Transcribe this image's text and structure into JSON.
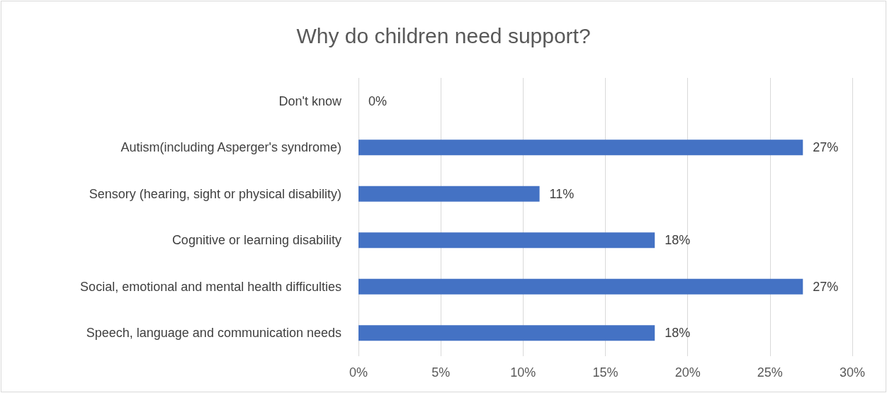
{
  "chart_data": {
    "type": "bar",
    "orientation": "horizontal",
    "title": "Why do children need support?",
    "categories": [
      "Don't know",
      "Autism(including Asperger's syndrome)",
      "Sensory (hearing, sight or physical disability)",
      "Cognitive or learning disability",
      "Social, emotional and mental health difficulties",
      "Speech, language and communication needs"
    ],
    "values": [
      0,
      27,
      11,
      18,
      27,
      18
    ],
    "value_labels": [
      "0%",
      "27%",
      "11%",
      "18%",
      "27%",
      "18%"
    ],
    "color": "#4472c4",
    "xlim": [
      0,
      30
    ],
    "xticks": [
      {
        "value": 0,
        "label": "0%"
      },
      {
        "value": 5,
        "label": "5%"
      },
      {
        "value": 10,
        "label": "10%"
      },
      {
        "value": 15,
        "label": "15%"
      },
      {
        "value": 20,
        "label": "20%"
      },
      {
        "value": 25,
        "label": "25%"
      },
      {
        "value": 30,
        "label": "30%"
      }
    ],
    "grid": "x"
  }
}
